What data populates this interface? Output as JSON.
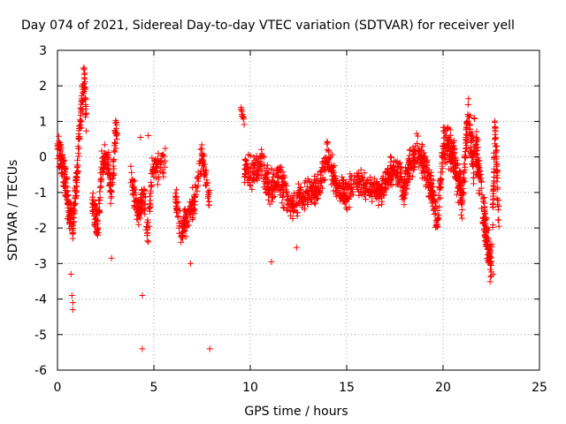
{
  "chart_data": {
    "type": "scatter",
    "title": "Day 074 of 2021, Sidereal Day-to-day VTEC variation (SDTVAR) for receiver yell",
    "xlabel": "GPS time / hours",
    "ylabel": "SDTVAR / TECUs",
    "xlim": [
      0,
      25
    ],
    "ylim": [
      -6,
      3
    ],
    "x_ticks": [
      "0",
      "5",
      "10",
      "15",
      "20",
      "25"
    ],
    "y_ticks": [
      "-6",
      "-5",
      "-4",
      "-3",
      "-2",
      "-1",
      "0",
      "1",
      "2",
      "3"
    ],
    "grid": true,
    "marker": "+",
    "color": "#ff0000",
    "series": [
      {
        "name": "SDTVAR",
        "segments": [
          {
            "x0": 0.0,
            "x1": 1.5,
            "n": 260,
            "y": [
              [
                0.0,
                0.3
              ],
              [
                0.2,
                -0.1
              ],
              [
                0.4,
                -0.6
              ],
              [
                0.6,
                -1.6
              ],
              [
                0.8,
                -1.9
              ],
              [
                1.0,
                -0.6
              ],
              [
                1.15,
                0.8
              ],
              [
                1.3,
                1.8
              ],
              [
                1.4,
                2.3
              ],
              [
                1.5,
                1.0
              ]
            ],
            "spread": 0.55
          },
          {
            "x0": 1.8,
            "x1": 3.1,
            "n": 170,
            "y": [
              [
                1.8,
                -1.2
              ],
              [
                2.1,
                -2.0
              ],
              [
                2.3,
                -0.3
              ],
              [
                2.6,
                0.0
              ],
              [
                2.8,
                -1.2
              ],
              [
                3.0,
                0.6
              ],
              [
                3.1,
                0.7
              ]
            ],
            "spread": 0.55
          },
          {
            "x0": 3.8,
            "x1": 5.6,
            "n": 170,
            "y": [
              [
                3.8,
                -0.6
              ],
              [
                4.2,
                -1.6
              ],
              [
                4.5,
                -1.1
              ],
              [
                4.7,
                -2.2
              ],
              [
                4.9,
                -0.4
              ],
              [
                5.2,
                -0.3
              ],
              [
                5.6,
                -0.2
              ]
            ],
            "spread": 0.5
          },
          {
            "x0": 6.1,
            "x1": 7.9,
            "n": 180,
            "y": [
              [
                6.1,
                -1.0
              ],
              [
                6.4,
                -2.1
              ],
              [
                6.8,
                -1.7
              ],
              [
                7.2,
                -1.0
              ],
              [
                7.5,
                0.1
              ],
              [
                7.8,
                -1.0
              ],
              [
                7.9,
                -1.3
              ]
            ],
            "spread": 0.5
          },
          {
            "x0": 9.5,
            "x1": 9.7,
            "n": 12,
            "y": [
              [
                9.5,
                1.3
              ],
              [
                9.7,
                1.0
              ]
            ],
            "spread": 0.15
          },
          {
            "x0": 9.7,
            "x1": 12.0,
            "n": 220,
            "y": [
              [
                9.7,
                -0.3
              ],
              [
                10.2,
                -0.4
              ],
              [
                10.6,
                -0.2
              ],
              [
                11.0,
                -0.9
              ],
              [
                11.5,
                -0.6
              ],
              [
                12.0,
                -1.2
              ]
            ],
            "spread": 0.6
          },
          {
            "x0": 12.0,
            "x1": 15.5,
            "n": 300,
            "y": [
              [
                12.0,
                -1.5
              ],
              [
                12.6,
                -1.1
              ],
              [
                13.0,
                -1.0
              ],
              [
                13.6,
                -0.8
              ],
              [
                14.0,
                0.0
              ],
              [
                14.6,
                -1.0
              ],
              [
                15.0,
                -1.1
              ],
              [
                15.5,
                -0.6
              ]
            ],
            "spread": 0.5
          },
          {
            "x0": 15.5,
            "x1": 18.0,
            "n": 250,
            "y": [
              [
                15.5,
                -0.7
              ],
              [
                16.2,
                -0.9
              ],
              [
                16.8,
                -1.0
              ],
              [
                17.3,
                -0.4
              ],
              [
                17.8,
                -0.5
              ],
              [
                18.0,
                -1.2
              ]
            ],
            "spread": 0.45
          },
          {
            "x0": 18.0,
            "x1": 20.0,
            "n": 260,
            "y": [
              [
                18.0,
                -0.8
              ],
              [
                18.6,
                0.3
              ],
              [
                19.0,
                -0.2
              ],
              [
                19.4,
                -0.9
              ],
              [
                19.7,
                -1.8
              ],
              [
                20.0,
                0.2
              ]
            ],
            "spread": 0.55
          },
          {
            "x0": 20.0,
            "x1": 21.6,
            "n": 260,
            "y": [
              [
                20.0,
                0.4
              ],
              [
                20.5,
                0.1
              ],
              [
                21.0,
                -1.2
              ],
              [
                21.3,
                1.2
              ],
              [
                21.6,
                -0.4
              ]
            ],
            "spread": 0.65
          },
          {
            "x0": 21.6,
            "x1": 22.9,
            "n": 240,
            "y": [
              [
                21.6,
                0.7
              ],
              [
                21.9,
                -0.6
              ],
              [
                22.1,
                -1.6
              ],
              [
                22.3,
                -2.4
              ],
              [
                22.5,
                -3.2
              ],
              [
                22.7,
                0.8
              ],
              [
                22.9,
                -1.8
              ]
            ],
            "spread": 0.7
          }
        ],
        "outliers": [
          {
            "x": 4.4,
            "y": -5.4
          },
          {
            "x": 7.9,
            "y": -5.4
          },
          {
            "x": 4.4,
            "y": -3.9
          },
          {
            "x": 0.8,
            "y": -4.3
          },
          {
            "x": 0.8,
            "y": -4.1
          },
          {
            "x": 0.75,
            "y": -3.9
          },
          {
            "x": 0.7,
            "y": -3.3
          },
          {
            "x": 11.1,
            "y": -2.95
          },
          {
            "x": 6.9,
            "y": -3.0
          },
          {
            "x": 2.8,
            "y": -2.85
          },
          {
            "x": 12.4,
            "y": -2.55
          },
          {
            "x": 9.6,
            "y": 1.2
          },
          {
            "x": 4.7,
            "y": 0.6
          },
          {
            "x": 4.3,
            "y": 0.55
          },
          {
            "x": 22.6,
            "y": -3.3
          }
        ]
      }
    ]
  }
}
